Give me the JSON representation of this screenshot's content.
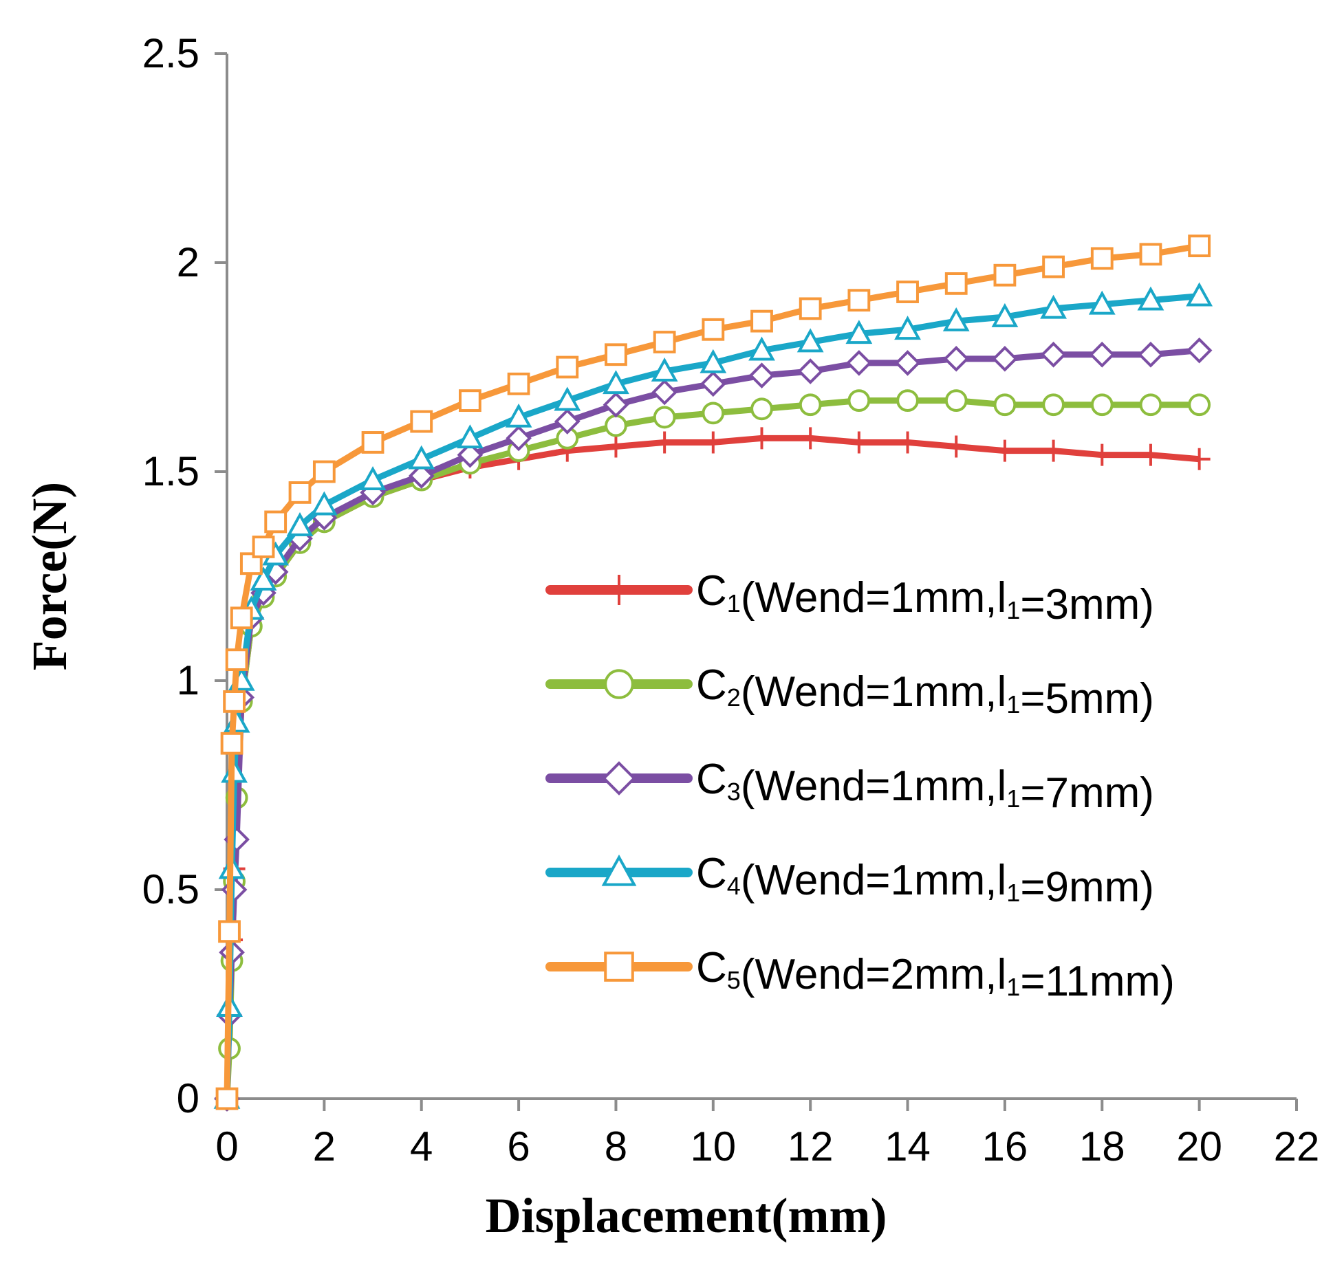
{
  "chart_data": {
    "type": "line",
    "xlabel": "Displacement(mm)",
    "ylabel": "Force(N)",
    "xlim": [
      0,
      22
    ],
    "ylim": [
      0,
      2.5
    ],
    "xticks": [
      "0",
      "2",
      "4",
      "6",
      "8",
      "10",
      "12",
      "14",
      "16",
      "18",
      "20",
      "22"
    ],
    "yticks": [
      "0",
      "0.5",
      "1",
      "1.5",
      "2",
      "2.5"
    ],
    "grid": false,
    "legend_position": "center-right",
    "x": [
      0,
      0.05,
      0.1,
      0.15,
      0.2,
      0.3,
      0.5,
      0.75,
      1,
      1.5,
      2,
      3,
      4,
      5,
      6,
      7,
      8,
      9,
      10,
      11,
      12,
      13,
      14,
      15,
      16,
      17,
      18,
      19,
      20
    ],
    "series": [
      {
        "name": "C1(Wend=1mm,l1=3mm)",
        "label_main": "C",
        "label_sub": "1",
        "label_mid": "(Wend=1mm,l",
        "label_sub2": "1",
        "label_end": "=3mm)",
        "color": "#e0403c",
        "marker": "plus",
        "values": [
          0,
          0.2,
          0.38,
          0.55,
          0.72,
          0.95,
          1.13,
          1.2,
          1.25,
          1.33,
          1.38,
          1.44,
          1.48,
          1.51,
          1.53,
          1.55,
          1.56,
          1.57,
          1.57,
          1.58,
          1.58,
          1.57,
          1.57,
          1.56,
          1.55,
          1.55,
          1.54,
          1.54,
          1.53
        ]
      },
      {
        "name": "C2(Wend=1mm,l1=5mm)",
        "label_main": "C",
        "label_sub": "2",
        "label_mid": "(Wend=1mm,l",
        "label_sub2": "1",
        "label_end": "=5mm)",
        "color": "#8dbd3e",
        "marker": "circle",
        "values": [
          0,
          0.12,
          0.33,
          0.52,
          0.72,
          0.95,
          1.13,
          1.2,
          1.25,
          1.33,
          1.38,
          1.44,
          1.48,
          1.52,
          1.55,
          1.58,
          1.61,
          1.63,
          1.64,
          1.65,
          1.66,
          1.67,
          1.67,
          1.67,
          1.66,
          1.66,
          1.66,
          1.66,
          1.66
        ]
      },
      {
        "name": "C3(Wend=1mm,l1=7mm)",
        "label_main": "C",
        "label_sub": "3",
        "label_mid": "(Wend=1mm,l",
        "label_sub2": "1",
        "label_end": "=7mm)",
        "color": "#7b4ea3",
        "marker": "diamond",
        "values": [
          0,
          0.2,
          0.35,
          0.5,
          0.62,
          0.96,
          1.15,
          1.21,
          1.26,
          1.34,
          1.39,
          1.45,
          1.49,
          1.54,
          1.58,
          1.62,
          1.66,
          1.69,
          1.71,
          1.73,
          1.74,
          1.76,
          1.76,
          1.77,
          1.77,
          1.78,
          1.78,
          1.78,
          1.79
        ]
      },
      {
        "name": "C4(Wend=1mm,l1=9mm)",
        "label_main": "C",
        "label_sub": "4",
        "label_mid": "(Wend=1mm,l",
        "label_sub2": "1",
        "label_end": "=9mm)",
        "color": "#1aa7c8",
        "marker": "triangle",
        "values": [
          0,
          0.22,
          0.55,
          0.78,
          0.9,
          1.0,
          1.17,
          1.24,
          1.3,
          1.37,
          1.42,
          1.48,
          1.53,
          1.58,
          1.63,
          1.67,
          1.71,
          1.74,
          1.76,
          1.79,
          1.81,
          1.83,
          1.84,
          1.86,
          1.87,
          1.89,
          1.9,
          1.91,
          1.92
        ]
      },
      {
        "name": "C5(Wend=2mm,l1=11mm)",
        "label_main": "C",
        "label_sub": "5",
        "label_mid": "(Wend=2mm,l",
        "label_sub2": "1",
        "label_end": "=11mm)",
        "color": "#f7983a",
        "marker": "square",
        "values": [
          0,
          0.4,
          0.85,
          0.95,
          1.05,
          1.15,
          1.28,
          1.32,
          1.38,
          1.45,
          1.5,
          1.57,
          1.62,
          1.67,
          1.71,
          1.75,
          1.78,
          1.81,
          1.84,
          1.86,
          1.89,
          1.91,
          1.93,
          1.95,
          1.97,
          1.99,
          2.01,
          2.02,
          2.04
        ]
      }
    ]
  }
}
